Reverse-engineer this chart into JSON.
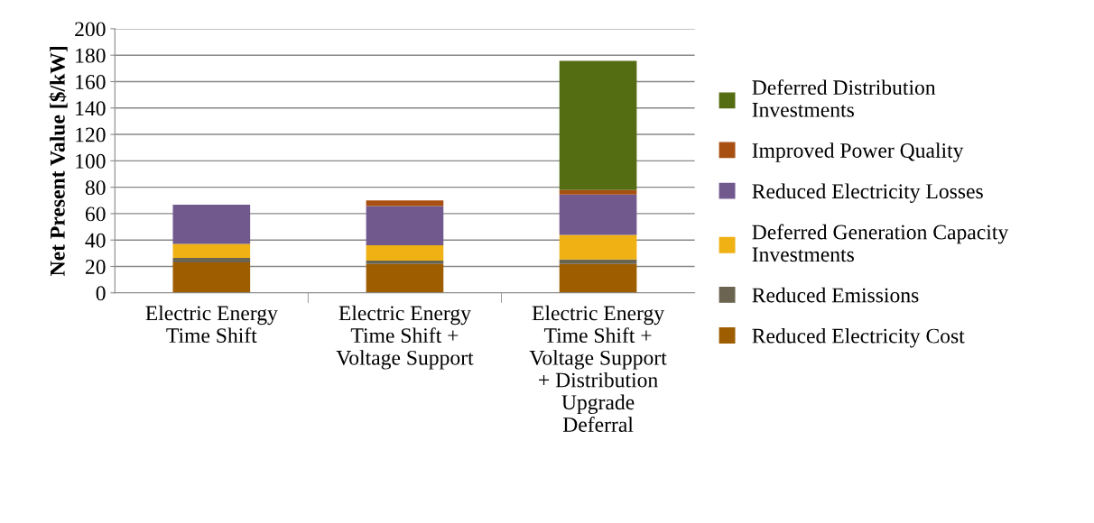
{
  "chart_data": {
    "type": "bar",
    "stacked": true,
    "ylabel": "Net Present Value [$/kW]",
    "categories": [
      "Electric Energy\nTime Shift",
      "Electric Energy\nTime Shift +\nVoltage Support",
      "Electric Energy\nTime Shift +\nVoltage Support\n+ Distribution\nUpgrade\nDeferral"
    ],
    "series": [
      {
        "name": "Reduced Electricity Cost",
        "color": "#9e5e00",
        "values": [
          23,
          21.8,
          21.8
        ]
      },
      {
        "name": "Reduced Emissions",
        "color": "#6b6450",
        "values": [
          3.5,
          2.7,
          3.5
        ]
      },
      {
        "name": "Deferred Generation Capacity Investments",
        "color": "#efb113",
        "values": [
          10.5,
          11.6,
          18.6
        ]
      },
      {
        "name": "Reduced Electricity Losses",
        "color": "#71598e",
        "values": [
          29.7,
          29.7,
          30.5
        ]
      },
      {
        "name": "Improved Power Quality",
        "color": "#a84f12",
        "values": [
          0,
          4.3,
          3.5
        ]
      },
      {
        "name": "Deferred Distribution Investments",
        "color": "#546c12",
        "values": [
          0,
          0,
          97.8
        ]
      }
    ],
    "ylim": [
      0,
      200
    ],
    "yticks": [
      0,
      20,
      40,
      60,
      80,
      100,
      120,
      140,
      160,
      180,
      200
    ],
    "grid": "y",
    "legend": "right"
  }
}
